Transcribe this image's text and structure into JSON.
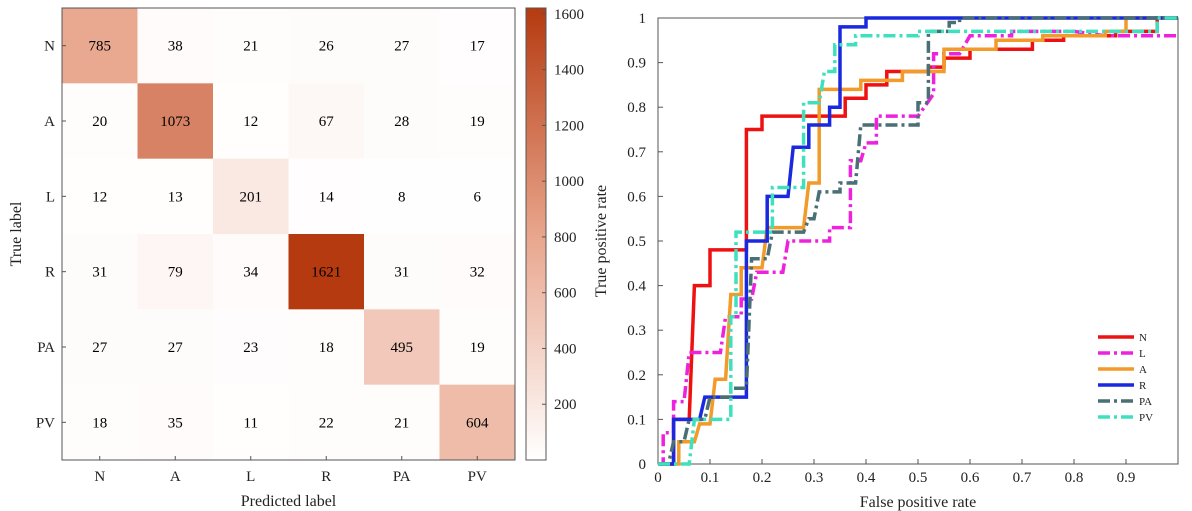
{
  "chart_data": [
    {
      "type": "heatmap",
      "title": "",
      "xlabel": "Predicted label",
      "ylabel": "True label",
      "x_categories": [
        "N",
        "A",
        "L",
        "R",
        "PA",
        "PV"
      ],
      "y_categories": [
        "N",
        "A",
        "L",
        "R",
        "PA",
        "PV"
      ],
      "values": [
        [
          785,
          38,
          21,
          26,
          27,
          17
        ],
        [
          20,
          1073,
          12,
          67,
          28,
          19
        ],
        [
          12,
          13,
          201,
          14,
          8,
          6
        ],
        [
          31,
          79,
          34,
          1621,
          31,
          32
        ],
        [
          27,
          27,
          23,
          18,
          495,
          19
        ],
        [
          18,
          35,
          11,
          22,
          21,
          604
        ]
      ],
      "colorbar": {
        "range": [
          0,
          1621
        ],
        "ticks": [
          200,
          400,
          600,
          800,
          1000,
          1200,
          1400,
          1600
        ],
        "tick_labels": [
          "200",
          "400",
          "600",
          "800",
          "1000",
          "1200",
          "1400",
          "1600"
        ],
        "color_low": "#ffffff",
        "color_high": "#b53a10"
      }
    },
    {
      "type": "line",
      "title": "",
      "xlabel": "False positive rate",
      "ylabel": "True positive rate",
      "xlim": [
        0,
        1
      ],
      "ylim": [
        0,
        1
      ],
      "xticks": [
        0,
        0.1,
        0.2,
        0.3,
        0.4,
        0.5,
        0.6,
        0.7,
        0.8,
        0.9
      ],
      "xtick_labels": [
        "0",
        "0.1",
        "0.2",
        "0.3",
        "0.4",
        "0.5",
        "0.6",
        "0.7",
        "0.8",
        "0.9"
      ],
      "yticks": [
        0,
        0.1,
        0.2,
        0.3,
        0.4,
        0.5,
        0.6,
        0.7,
        0.8,
        0.9,
        1
      ],
      "ytick_labels": [
        "0",
        "0.1",
        "0.2",
        "0.3",
        "0.4",
        "0.5",
        "0.6",
        "0.7",
        "0.8",
        "0.9",
        "1"
      ],
      "legend_position": "bottom-right",
      "series": [
        {
          "name": "N",
          "color": "#ee1111",
          "dash": "solid",
          "points": [
            [
              0,
              0
            ],
            [
              0.03,
              0
            ],
            [
              0.03,
              0.1
            ],
            [
              0.06,
              0.1
            ],
            [
              0.07,
              0.4
            ],
            [
              0.1,
              0.4
            ],
            [
              0.1,
              0.48
            ],
            [
              0.17,
              0.48
            ],
            [
              0.17,
              0.75
            ],
            [
              0.2,
              0.75
            ],
            [
              0.2,
              0.78
            ],
            [
              0.36,
              0.78
            ],
            [
              0.36,
              0.82
            ],
            [
              0.4,
              0.82
            ],
            [
              0.4,
              0.85
            ],
            [
              0.44,
              0.85
            ],
            [
              0.44,
              0.88
            ],
            [
              0.52,
              0.88
            ],
            [
              0.52,
              0.89
            ],
            [
              0.55,
              0.89
            ],
            [
              0.55,
              0.91
            ],
            [
              0.6,
              0.91
            ],
            [
              0.6,
              0.93
            ],
            [
              0.72,
              0.93
            ],
            [
              0.72,
              0.95
            ],
            [
              0.78,
              0.95
            ],
            [
              0.78,
              0.96
            ],
            [
              0.88,
              0.96
            ],
            [
              0.88,
              0.97
            ],
            [
              0.96,
              0.97
            ],
            [
              0.96,
              1
            ],
            [
              1,
              1
            ]
          ]
        },
        {
          "name": "L",
          "color": "#ee22dd",
          "dash": "dash-dot",
          "points": [
            [
              0,
              0
            ],
            [
              0.01,
              0
            ],
            [
              0.01,
              0.07
            ],
            [
              0.03,
              0.07
            ],
            [
              0.03,
              0.14
            ],
            [
              0.05,
              0.14
            ],
            [
              0.06,
              0.25
            ],
            [
              0.12,
              0.25
            ],
            [
              0.13,
              0.33
            ],
            [
              0.16,
              0.33
            ],
            [
              0.16,
              0.37
            ],
            [
              0.18,
              0.37
            ],
            [
              0.19,
              0.43
            ],
            [
              0.24,
              0.43
            ],
            [
              0.25,
              0.5
            ],
            [
              0.33,
              0.5
            ],
            [
              0.33,
              0.53
            ],
            [
              0.37,
              0.53
            ],
            [
              0.37,
              0.68
            ],
            [
              0.39,
              0.68
            ],
            [
              0.4,
              0.72
            ],
            [
              0.42,
              0.72
            ],
            [
              0.42,
              0.78
            ],
            [
              0.5,
              0.78
            ],
            [
              0.53,
              0.83
            ],
            [
              0.53,
              0.92
            ],
            [
              0.58,
              0.92
            ],
            [
              0.6,
              0.96
            ],
            [
              0.68,
              0.96
            ],
            [
              0.68,
              0.97
            ],
            [
              0.8,
              0.97
            ],
            [
              0.86,
              0.96
            ],
            [
              1,
              0.96
            ]
          ]
        },
        {
          "name": "A",
          "color": "#f29a2a",
          "dash": "solid",
          "points": [
            [
              0,
              0
            ],
            [
              0.04,
              0
            ],
            [
              0.04,
              0.05
            ],
            [
              0.07,
              0.05
            ],
            [
              0.08,
              0.09
            ],
            [
              0.1,
              0.09
            ],
            [
              0.11,
              0.19
            ],
            [
              0.13,
              0.19
            ],
            [
              0.14,
              0.38
            ],
            [
              0.16,
              0.38
            ],
            [
              0.16,
              0.44
            ],
            [
              0.2,
              0.44
            ],
            [
              0.21,
              0.53
            ],
            [
              0.28,
              0.53
            ],
            [
              0.29,
              0.63
            ],
            [
              0.31,
              0.63
            ],
            [
              0.31,
              0.84
            ],
            [
              0.39,
              0.84
            ],
            [
              0.39,
              0.86
            ],
            [
              0.47,
              0.86
            ],
            [
              0.47,
              0.88
            ],
            [
              0.55,
              0.88
            ],
            [
              0.55,
              0.93
            ],
            [
              0.65,
              0.93
            ],
            [
              0.65,
              0.95
            ],
            [
              0.74,
              0.95
            ],
            [
              0.74,
              0.96
            ],
            [
              0.86,
              0.96
            ],
            [
              0.86,
              0.97
            ],
            [
              0.9,
              0.97
            ],
            [
              0.9,
              1
            ],
            [
              1,
              1
            ]
          ]
        },
        {
          "name": "R",
          "color": "#1a28e0",
          "dash": "solid",
          "points": [
            [
              0,
              0
            ],
            [
              0.03,
              0
            ],
            [
              0.03,
              0.1
            ],
            [
              0.08,
              0.1
            ],
            [
              0.09,
              0.15
            ],
            [
              0.17,
              0.15
            ],
            [
              0.17,
              0.5
            ],
            [
              0.21,
              0.5
            ],
            [
              0.21,
              0.6
            ],
            [
              0.25,
              0.6
            ],
            [
              0.26,
              0.71
            ],
            [
              0.29,
              0.71
            ],
            [
              0.29,
              0.76
            ],
            [
              0.33,
              0.76
            ],
            [
              0.33,
              0.8
            ],
            [
              0.35,
              0.8
            ],
            [
              0.35,
              0.98
            ],
            [
              0.4,
              0.98
            ],
            [
              0.4,
              1
            ],
            [
              1,
              1
            ]
          ]
        },
        {
          "name": "PA",
          "color": "#4a6f75",
          "dash": "dash-dot",
          "points": [
            [
              0,
              0
            ],
            [
              0.02,
              0
            ],
            [
              0.03,
              0.05
            ],
            [
              0.05,
              0.05
            ],
            [
              0.06,
              0.1
            ],
            [
              0.09,
              0.1
            ],
            [
              0.1,
              0.15
            ],
            [
              0.14,
              0.15
            ],
            [
              0.14,
              0.17
            ],
            [
              0.17,
              0.17
            ],
            [
              0.18,
              0.46
            ],
            [
              0.21,
              0.46
            ],
            [
              0.22,
              0.52
            ],
            [
              0.28,
              0.52
            ],
            [
              0.29,
              0.55
            ],
            [
              0.3,
              0.55
            ],
            [
              0.31,
              0.61
            ],
            [
              0.35,
              0.61
            ],
            [
              0.35,
              0.63
            ],
            [
              0.38,
              0.63
            ],
            [
              0.39,
              0.76
            ],
            [
              0.5,
              0.76
            ],
            [
              0.5,
              0.81
            ],
            [
              0.52,
              0.81
            ],
            [
              0.52,
              0.97
            ],
            [
              0.56,
              0.97
            ],
            [
              0.56,
              0.99
            ],
            [
              0.58,
              0.99
            ],
            [
              0.58,
              1
            ],
            [
              1,
              1
            ]
          ]
        },
        {
          "name": "PV",
          "color": "#3fe0be",
          "dash": "dash-dot",
          "points": [
            [
              0,
              0
            ],
            [
              0.06,
              0
            ],
            [
              0.07,
              0.1
            ],
            [
              0.14,
              0.1
            ],
            [
              0.14,
              0.33
            ],
            [
              0.15,
              0.33
            ],
            [
              0.15,
              0.52
            ],
            [
              0.22,
              0.52
            ],
            [
              0.22,
              0.62
            ],
            [
              0.28,
              0.62
            ],
            [
              0.28,
              0.81
            ],
            [
              0.31,
              0.81
            ],
            [
              0.32,
              0.88
            ],
            [
              0.34,
              0.88
            ],
            [
              0.34,
              0.94
            ],
            [
              0.38,
              0.94
            ],
            [
              0.38,
              0.96
            ],
            [
              0.5,
              0.96
            ],
            [
              0.5,
              0.97
            ],
            [
              0.96,
              0.97
            ],
            [
              0.96,
              1
            ],
            [
              1,
              1
            ]
          ]
        }
      ]
    }
  ]
}
